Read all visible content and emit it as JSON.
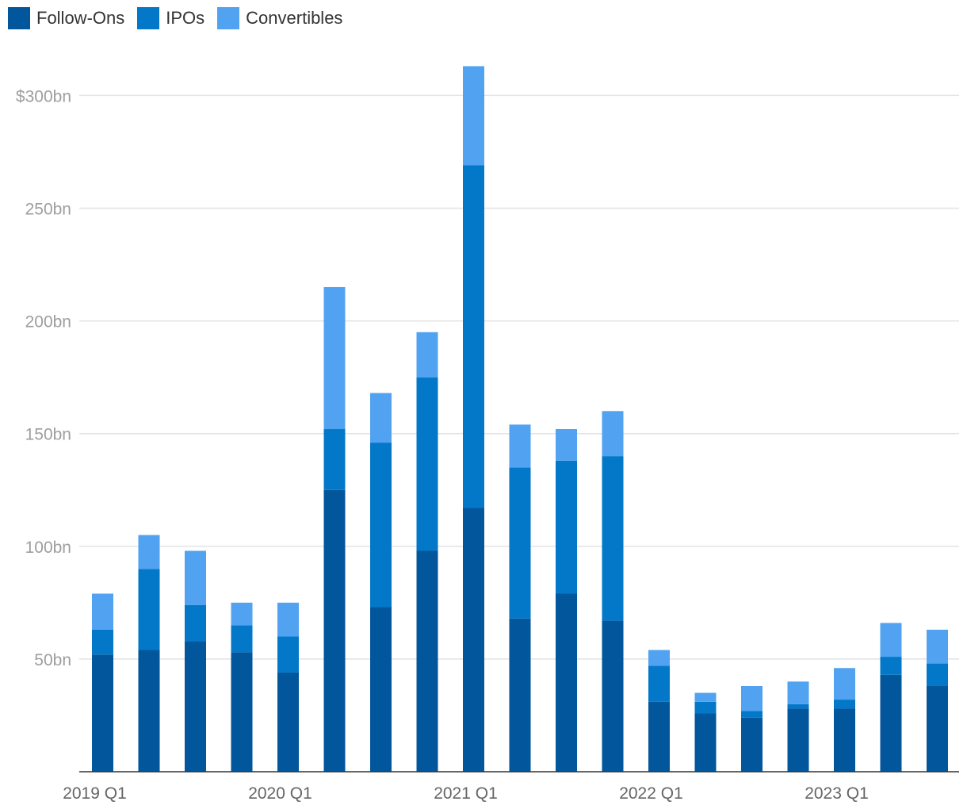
{
  "colors": {
    "follow_ons": "#02569b",
    "ipos": "#0378c9",
    "convertibles": "#51a3f1",
    "grid": "#e3e3e3",
    "axis": "#333333"
  },
  "chart_data": {
    "type": "bar",
    "stacked": true,
    "legend_position": "top-left",
    "grid": true,
    "categories": [
      "2019 Q1",
      "2019 Q2",
      "2019 Q3",
      "2019 Q4",
      "2020 Q1",
      "2020 Q2",
      "2020 Q3",
      "2020 Q4",
      "2021 Q1",
      "2021 Q2",
      "2021 Q3",
      "2021 Q4",
      "2022 Q1",
      "2022 Q2",
      "2022 Q3",
      "2022 Q4",
      "2023 Q1",
      "2023 Q2",
      "2023 Q3"
    ],
    "x_tick_labels": [
      {
        "index": 0,
        "label": "2019 Q1"
      },
      {
        "index": 4,
        "label": "2020 Q1"
      },
      {
        "index": 8,
        "label": "2021 Q1"
      },
      {
        "index": 12,
        "label": "2022 Q1"
      },
      {
        "index": 16,
        "label": "2023 Q1"
      }
    ],
    "y_tick_labels": [
      {
        "value": 50,
        "label": "50bn"
      },
      {
        "value": 100,
        "label": "100bn"
      },
      {
        "value": 150,
        "label": "150bn"
      },
      {
        "value": 200,
        "label": "200bn"
      },
      {
        "value": 250,
        "label": "250bn"
      },
      {
        "value": 300,
        "label": "$300bn"
      }
    ],
    "ylim": [
      0,
      330
    ],
    "series": [
      {
        "name": "Follow-Ons",
        "values": [
          52,
          54,
          58,
          53,
          44,
          125,
          73,
          98,
          117,
          68,
          79,
          67,
          31,
          26,
          24,
          28,
          28,
          43,
          38
        ]
      },
      {
        "name": "IPOs",
        "values": [
          11,
          36,
          16,
          12,
          16,
          27,
          73,
          77,
          152,
          67,
          59,
          73,
          16,
          5,
          3,
          2,
          4,
          8,
          10
        ]
      },
      {
        "name": "Convertibles",
        "values": [
          16,
          15,
          24,
          10,
          15,
          63,
          22,
          20,
          44,
          19,
          14,
          20,
          7,
          4,
          11,
          10,
          14,
          15,
          15
        ]
      }
    ]
  }
}
